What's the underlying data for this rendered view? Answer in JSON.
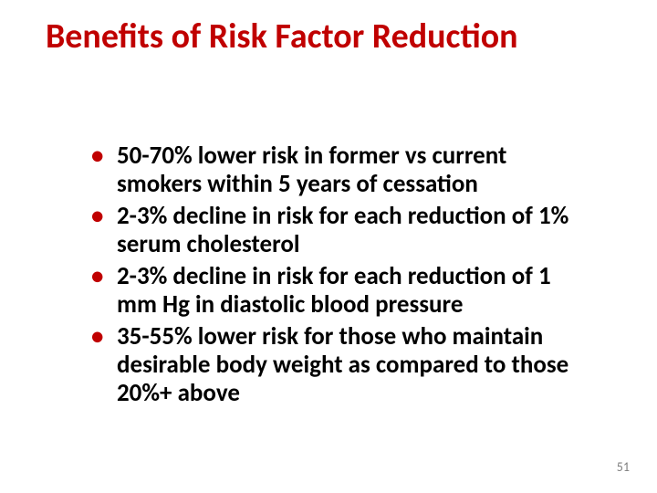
{
  "title": {
    "text": "Benefits of Risk Factor Reduction",
    "color": "#c00000",
    "fontsize": 38,
    "fontweight": 700
  },
  "bullets": {
    "marker_color": "#c00000",
    "text_color": "#000000",
    "fontsize": 27,
    "fontweight": 700,
    "items": [
      "50-70% lower risk in former vs current smokers within 5 years of cessation",
      "2-3% decline in risk for each reduction of 1% serum cholesterol",
      "2-3% decline in risk for each reduction of 1 mm Hg in diastolic blood pressure",
      "35-55% lower risk for those who maintain desirable body weight as compared to those 20%+ above"
    ]
  },
  "page_number": "51",
  "background_color": "#ffffff"
}
